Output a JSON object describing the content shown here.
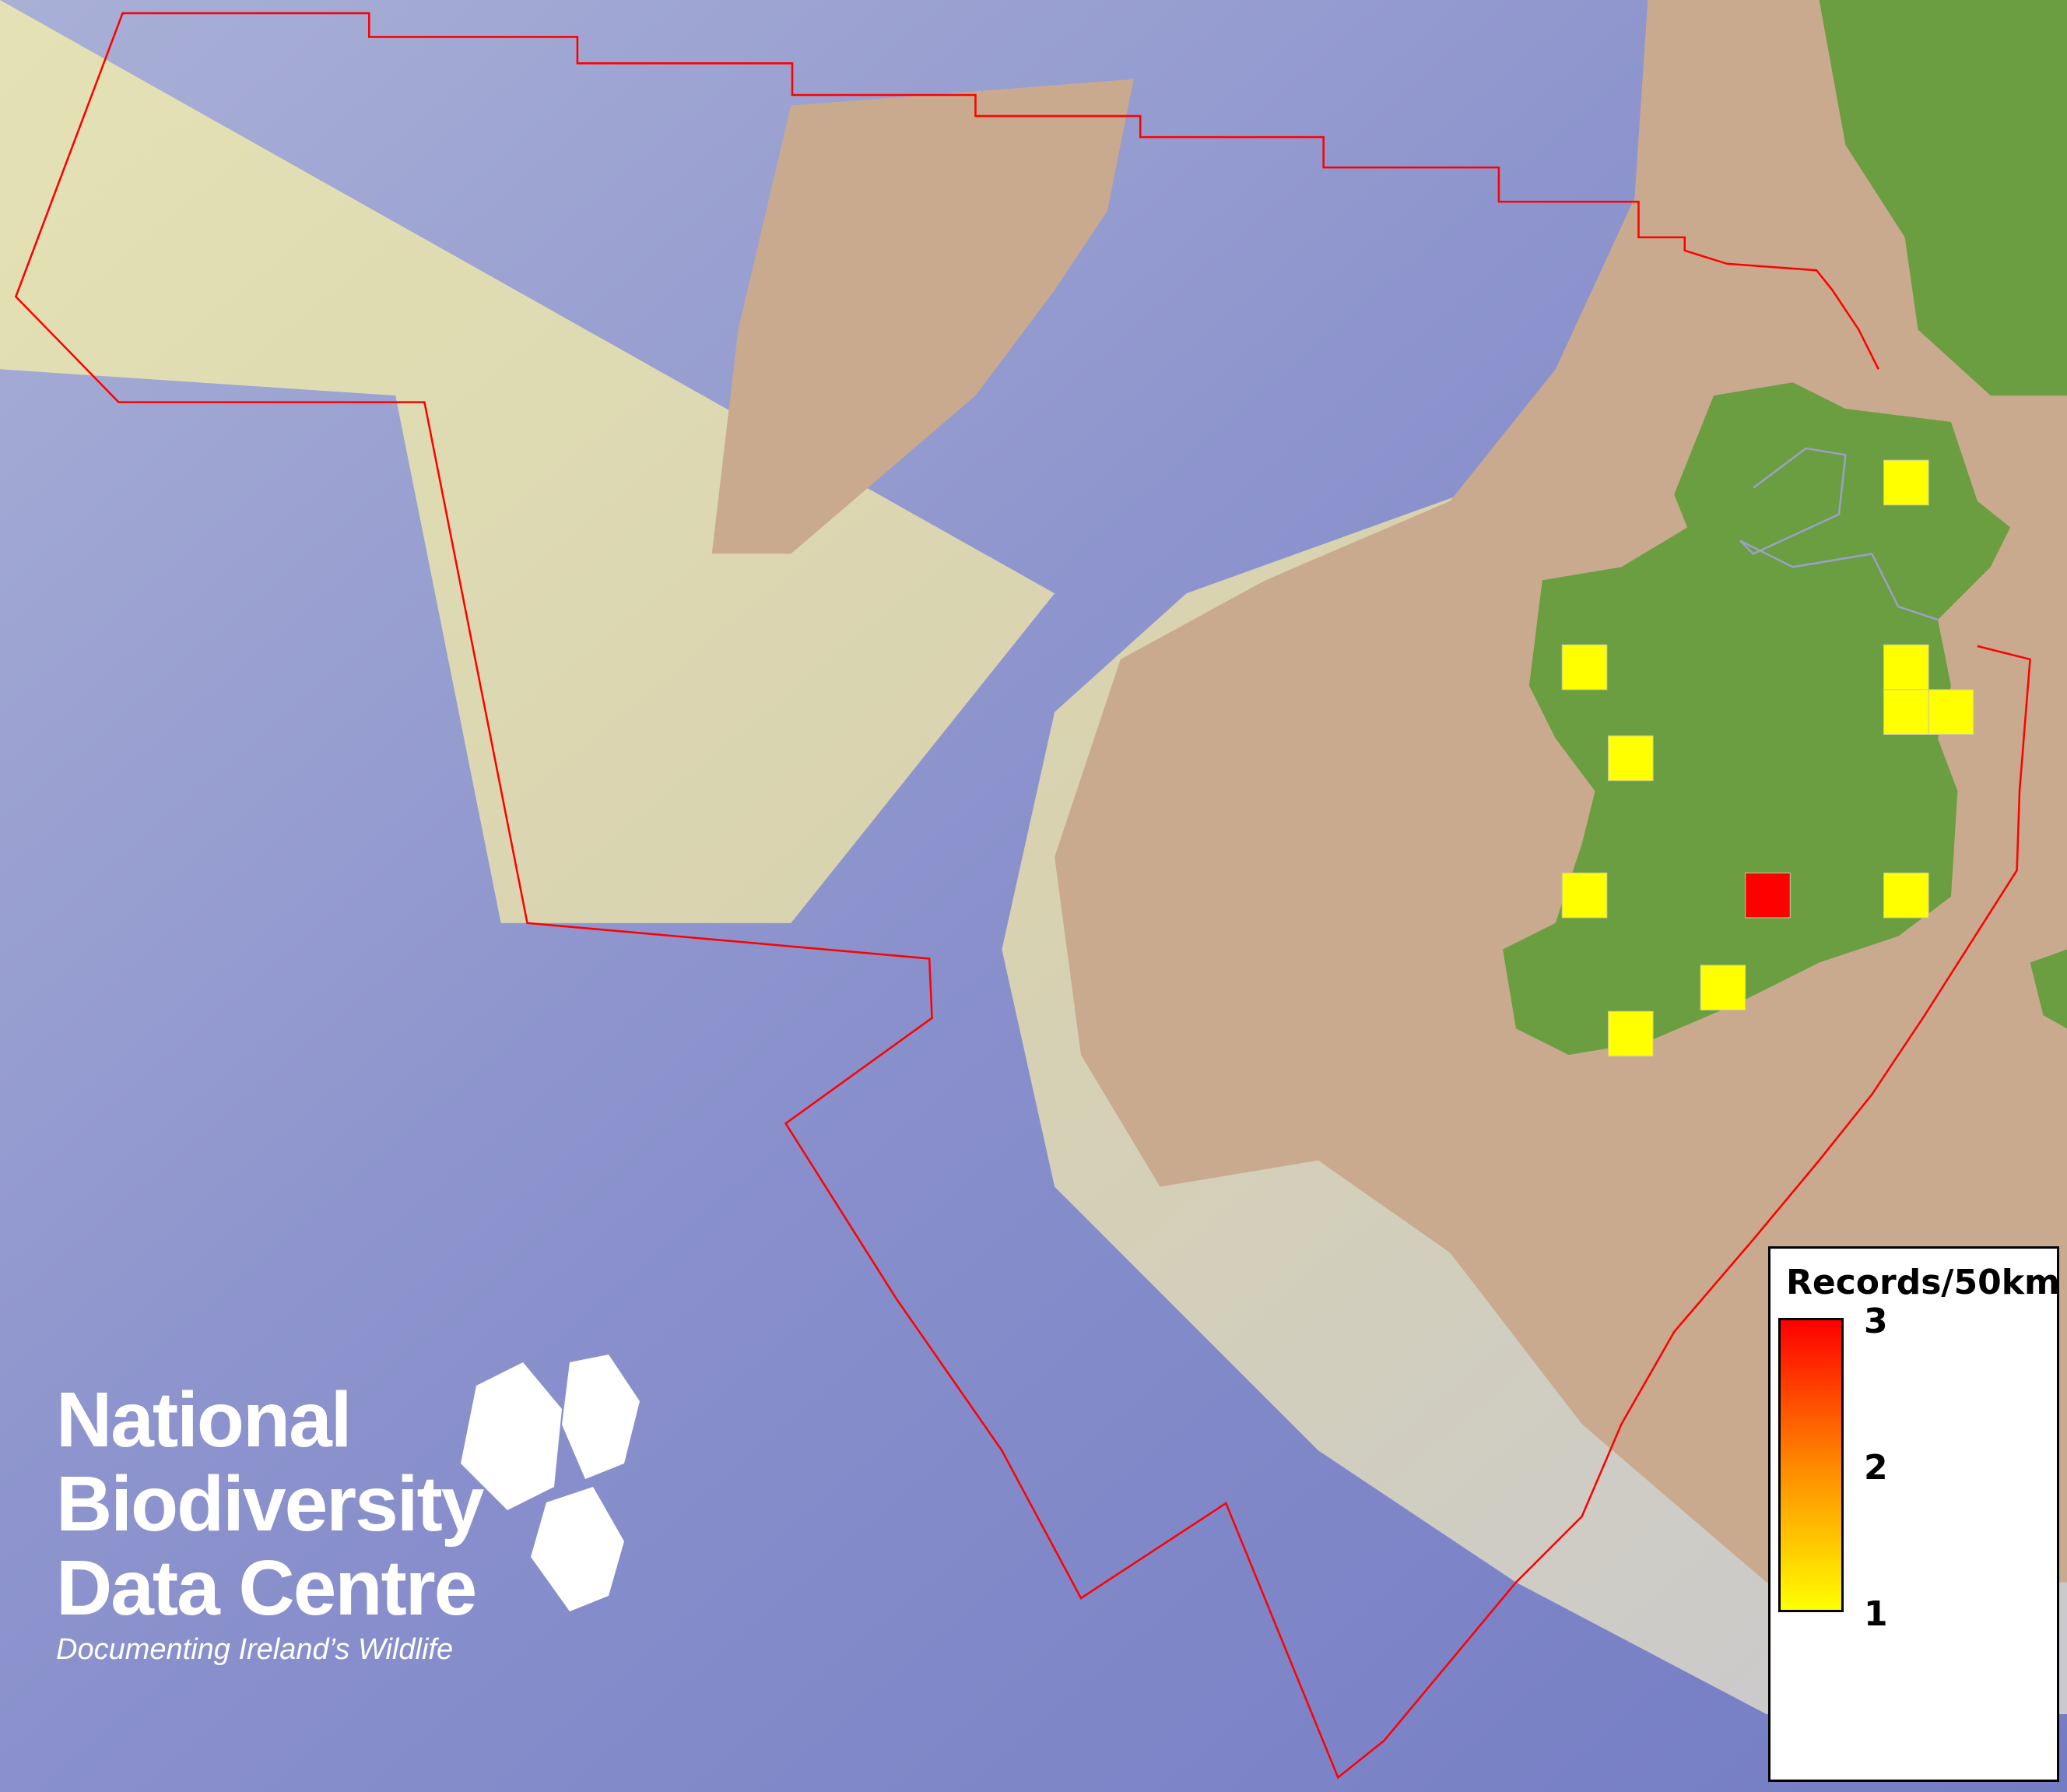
{
  "map": {
    "colors": {
      "sea": "#7f86c8",
      "shelf": "#dcdcb0",
      "land": "#c8a98c",
      "ireland": "#6a9e40",
      "boundary": "#ff0000",
      "low": "#ffff00",
      "high": "#ff0000"
    },
    "cells": [
      {
        "value": 1
      },
      {
        "value": 1
      },
      {
        "value": 1
      },
      {
        "value": 1
      },
      {
        "value": 1
      },
      {
        "value": 1
      },
      {
        "value": 1
      },
      {
        "value": 1
      },
      {
        "value": 1
      },
      {
        "value": 1
      },
      {
        "value": 3
      }
    ]
  },
  "legend": {
    "title": "Records/50km",
    "max_label": "3",
    "mid_label": "2",
    "min_label": "1",
    "range": [
      1,
      3
    ]
  },
  "logo": {
    "line1": "National",
    "line2": "Biodiversity",
    "line3": "Data Centre",
    "tagline": "Documenting Ireland’s Wildlife"
  }
}
